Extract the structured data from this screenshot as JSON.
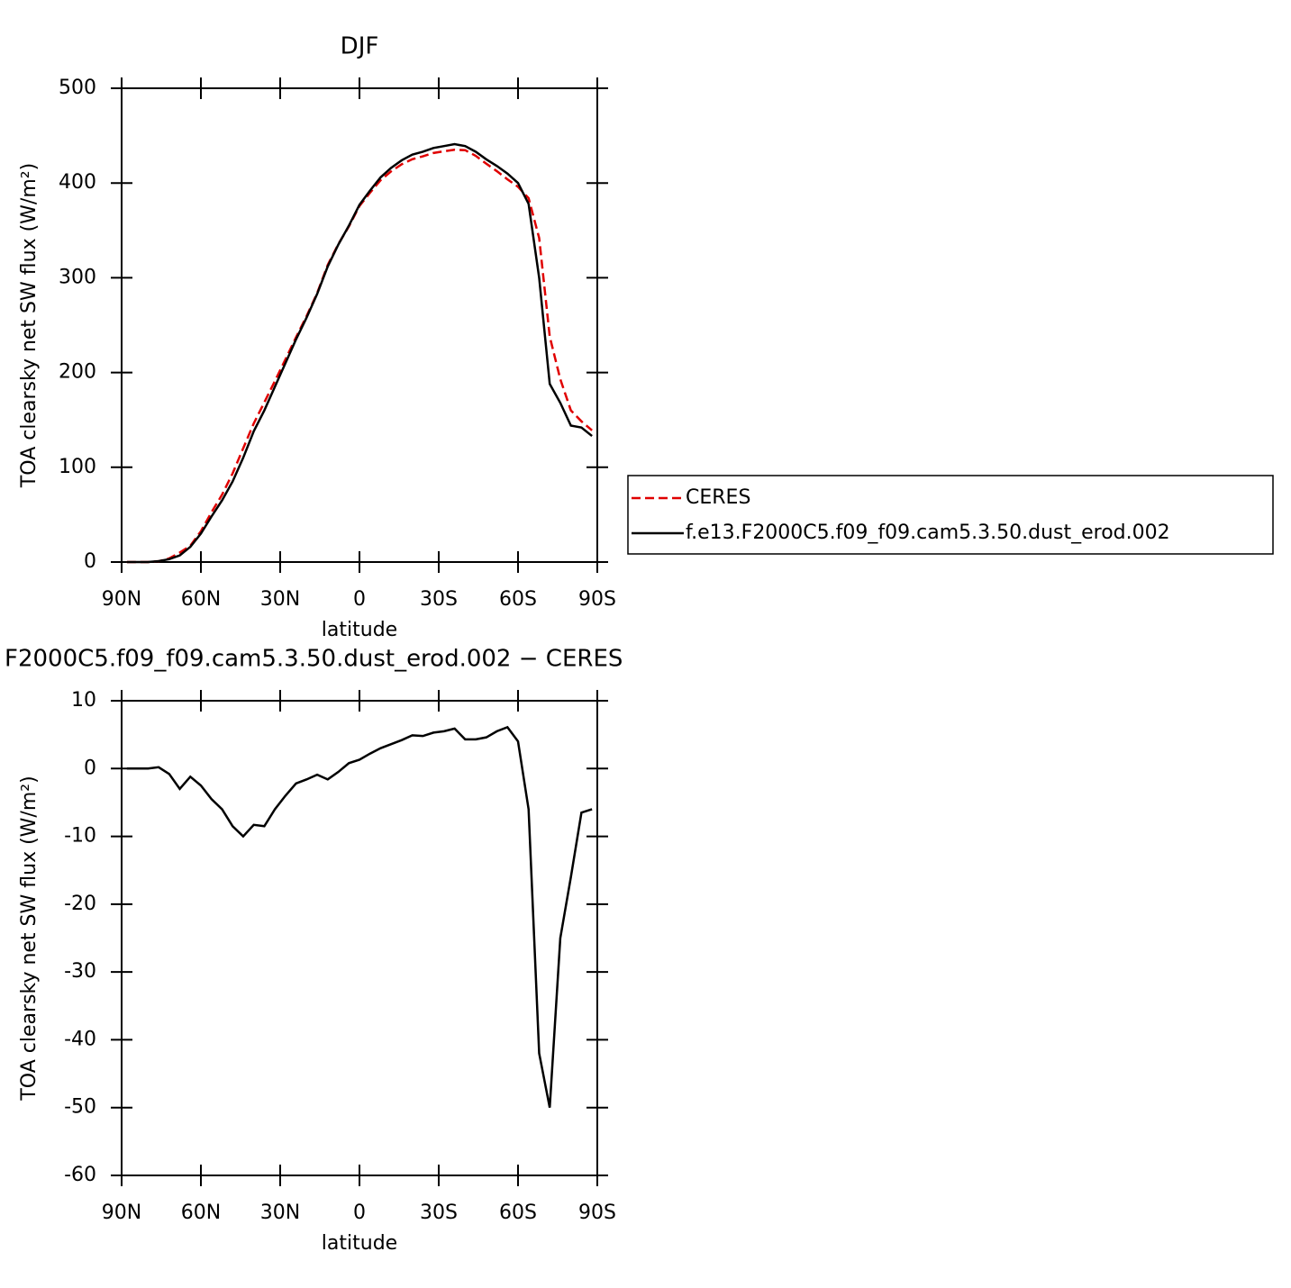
{
  "chart_data": [
    {
      "type": "line",
      "title": "DJF",
      "xlabel": "latitude",
      "ylabel": "TOA clearsky net SW flux (W/m²)",
      "x": [
        88,
        84,
        80,
        76,
        72,
        68,
        64,
        60,
        56,
        52,
        48,
        44,
        40,
        36,
        32,
        28,
        24,
        20,
        16,
        12,
        8,
        4,
        0,
        -4,
        -8,
        -12,
        -16,
        -20,
        -24,
        -28,
        -32,
        -36,
        -40,
        -44,
        -48,
        -52,
        -56,
        -60,
        -64,
        -68,
        -72,
        -76,
        -80,
        -84,
        -88
      ],
      "xlim": [
        90,
        -90
      ],
      "xticks": [
        {
          "value": 90,
          "label": "90N"
        },
        {
          "value": 60,
          "label": "60N"
        },
        {
          "value": 30,
          "label": "30N"
        },
        0,
        {
          "value": -30,
          "label": "30S"
        },
        {
          "value": -60,
          "label": "60S"
        },
        {
          "value": -90,
          "label": "90S"
        }
      ],
      "ylim": [
        0,
        500
      ],
      "yticks": [
        0,
        100,
        200,
        300,
        400,
        500
      ],
      "legend": "outside-right",
      "series": [
        {
          "name": "CERES",
          "color": "#e00000",
          "dashed": true,
          "values": [
            0,
            0,
            0,
            0.8,
            3.8,
            10,
            17.2,
            32.5,
            52.5,
            71,
            93.5,
            120,
            146.3,
            168.5,
            191,
            214,
            237.2,
            259.6,
            283.9,
            313.6,
            335.5,
            354.2,
            375.7,
            389.8,
            403,
            412.4,
            419.8,
            425.1,
            428.2,
            431.7,
            433.5,
            435.1,
            434.7,
            428.7,
            420.4,
            412.5,
            403.9,
            396,
            384,
            342,
            238,
            193,
            160,
            148.5,
            139
          ]
        },
        {
          "name": "f.e13.F2000C5.f09_f09.cam5.3.50.dust_erod.002",
          "color": "#000000",
          "dashed": false,
          "values": [
            0,
            0,
            0,
            1,
            3,
            7,
            16,
            30,
            48,
            65,
            85,
            110,
            138,
            160,
            185,
            210,
            235,
            258,
            283,
            312,
            335,
            355,
            377,
            392,
            406,
            416,
            424,
            430,
            433,
            437,
            439,
            441,
            439,
            433,
            425,
            418,
            410,
            400,
            378,
            300,
            188,
            168,
            144,
            142,
            133
          ]
        }
      ]
    },
    {
      "type": "line",
      "title": "F2000C5.f09_f09.cam5.3.50.dust_erod.002 − CERES",
      "xlabel": "latitude",
      "ylabel": "TOA clearsky net SW flux (W/m²)",
      "x": [
        88,
        84,
        80,
        76,
        72,
        68,
        64,
        60,
        56,
        52,
        48,
        44,
        40,
        36,
        32,
        28,
        24,
        20,
        16,
        12,
        8,
        4,
        0,
        -4,
        -8,
        -12,
        -16,
        -20,
        -24,
        -28,
        -32,
        -36,
        -40,
        -44,
        -48,
        -52,
        -56,
        -60,
        -64,
        -68,
        -72,
        -76,
        -80,
        -84,
        -88
      ],
      "xlim": [
        90,
        -90
      ],
      "xticks": [
        {
          "value": 90,
          "label": "90N"
        },
        {
          "value": 60,
          "label": "60N"
        },
        {
          "value": 30,
          "label": "30N"
        },
        0,
        {
          "value": -30,
          "label": "30S"
        },
        {
          "value": -60,
          "label": "60S"
        },
        {
          "value": -90,
          "label": "90S"
        }
      ],
      "ylim": [
        -60,
        10
      ],
      "yticks": [
        -60,
        -50,
        -40,
        -30,
        -20,
        -10,
        0,
        10
      ],
      "series": [
        {
          "color": "#000000",
          "dashed": false,
          "values": [
            0,
            0,
            0,
            0.2,
            -0.8,
            -3,
            -1.2,
            -2.5,
            -4.5,
            -6,
            -8.5,
            -10,
            -8.3,
            -8.5,
            -6,
            -4,
            -2.2,
            -1.6,
            -0.9,
            -1.6,
            -0.5,
            0.8,
            1.3,
            2.2,
            3,
            3.6,
            4.2,
            4.9,
            4.8,
            5.3,
            5.5,
            5.9,
            4.3,
            4.3,
            4.6,
            5.5,
            6.1,
            4,
            -6,
            -42,
            -50,
            -25,
            -16,
            -6.5,
            -6
          ]
        }
      ]
    }
  ]
}
